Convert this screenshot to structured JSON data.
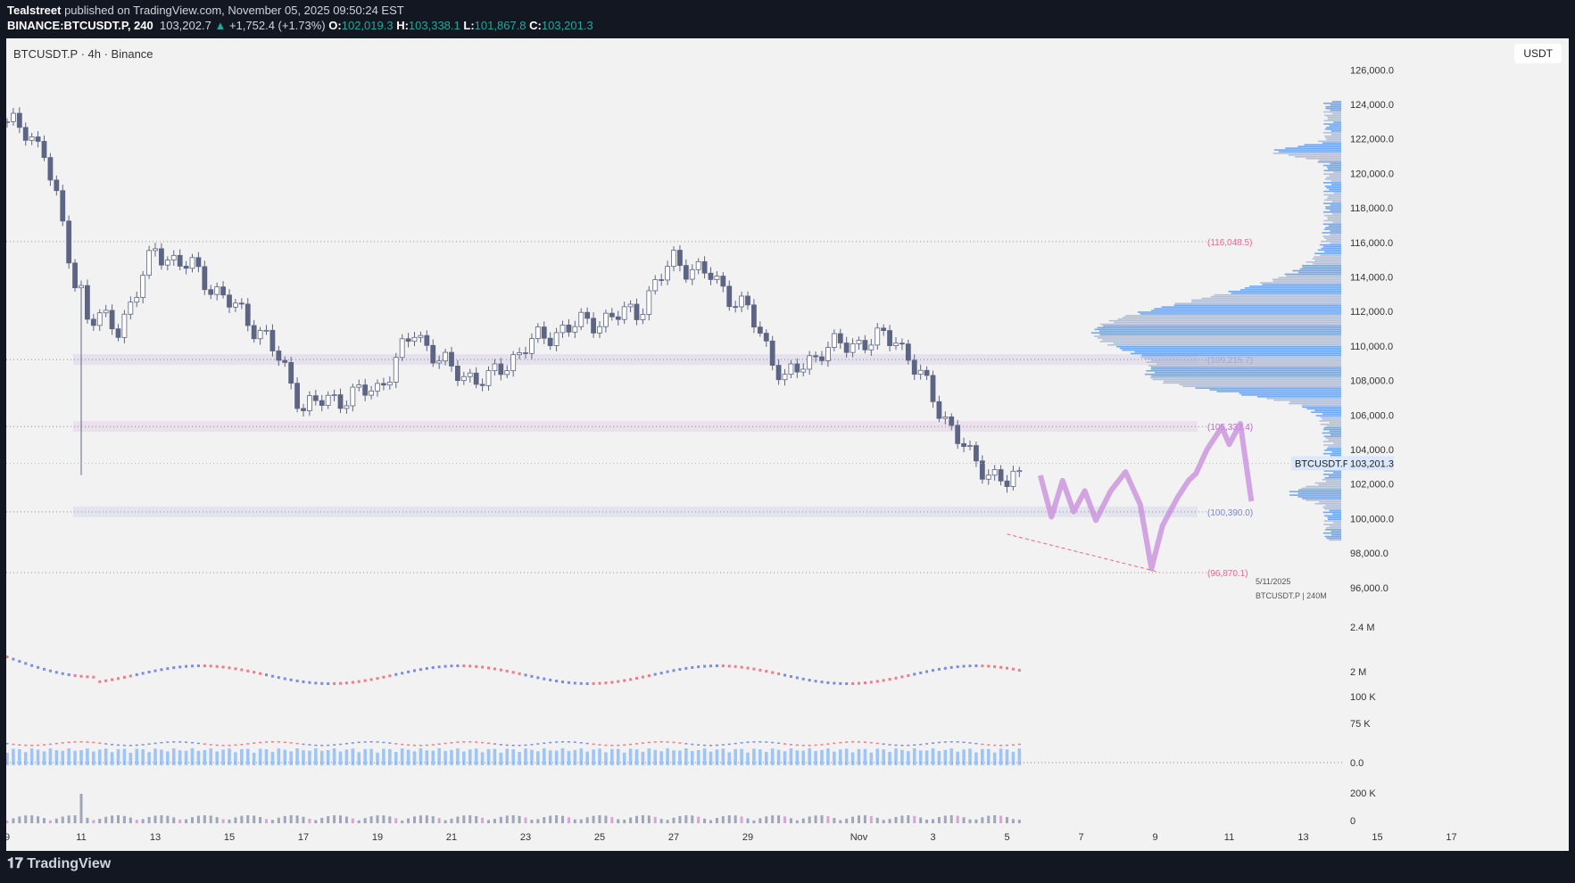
{
  "header": {
    "line1_author": "Tealstreet",
    "line1_rest": " published on TradingView.com, November 05, 2025 09:50:24 EST",
    "symbol": "BINANCE:BTCUSDT.P, 240",
    "last": "103,202.7",
    "change": "+1,752.4 (+1.73%)",
    "o_label": "O:",
    "o": "102,019.3",
    "h_label": "H:",
    "h": "103,338.1",
    "l_label": "L:",
    "l": "101,867.8",
    "c_label": "C:",
    "c": "103,201.3"
  },
  "chart_title": "BTCUSDT.P · 4h · Binance",
  "currency": "USDT",
  "footer": "TradingView",
  "chart_data": {
    "type": "candlestick",
    "symbol": "BTCUSDT.P",
    "interval": "4h",
    "ylim": [
      95000,
      127000
    ],
    "yticks": [
      "126,000.0",
      "124,000.0",
      "122,000.0",
      "120,000.0",
      "118,000.0",
      "116,000.0",
      "114,000.0",
      "112,000.0",
      "110,000.0",
      "108,000.0",
      "106,000.0",
      "104,000.0",
      "102,000.0",
      "100,000.0",
      "98,000.0",
      "96,000.0"
    ],
    "ytick_values": [
      126000,
      124000,
      122000,
      120000,
      118000,
      116000,
      114000,
      112000,
      110000,
      108000,
      106000,
      104000,
      102000,
      100000,
      98000,
      96000
    ],
    "xticks": [
      "9",
      "11",
      "13",
      "15",
      "17",
      "19",
      "21",
      "23",
      "25",
      "27",
      "29",
      "Nov",
      "3",
      "5",
      "7",
      "9",
      "11",
      "13",
      "15",
      "17"
    ],
    "xtick_days": [
      0,
      2,
      4,
      6,
      8,
      10,
      12,
      14,
      16,
      18,
      20,
      23,
      25,
      27,
      29,
      31,
      33,
      35,
      37,
      39
    ],
    "daily_closes": [
      123000,
      121500,
      112000,
      111000,
      115500,
      114500,
      112500,
      110500,
      106500,
      107000,
      107500,
      110800,
      108500,
      108000,
      110000,
      111000,
      111500,
      112000,
      115000,
      114000,
      112000,
      108000,
      109800,
      110200,
      110500,
      107000,
      103500,
      102000,
      103200
    ],
    "levels": [
      {
        "label": "(116,048.5)",
        "value": 116048.5,
        "color": "#f06292"
      },
      {
        "label": "(109,215.7)",
        "value": 109215.7,
        "color": "#9575cd"
      },
      {
        "label": "(105,333.4)",
        "value": 105333.4,
        "color": "#ba68c8"
      },
      {
        "label": "(100,390.0)",
        "value": 100390.0,
        "color": "#7986cb"
      },
      {
        "label": "(96,870.1)",
        "value": 96870.1,
        "color": "#f06292"
      }
    ],
    "last_price_label": "103,201.3",
    "last_price_value": 103201.3,
    "last_symbol_tag": "BTCUSDT.P",
    "profile_note_date": "5/11/2025",
    "profile_note": "BTCUSDT.P | 240M",
    "projection": [
      [
        27.9,
        102500
      ],
      [
        28.2,
        100100
      ],
      [
        28.5,
        102200
      ],
      [
        28.8,
        100400
      ],
      [
        29.1,
        101600
      ],
      [
        29.4,
        99900
      ],
      [
        29.8,
        101600
      ],
      [
        30.2,
        102700
      ],
      [
        30.6,
        100800
      ],
      [
        30.9,
        97100
      ],
      [
        31.2,
        99600
      ],
      [
        31.6,
        101200
      ],
      [
        31.9,
        102200
      ],
      [
        32.1,
        102600
      ],
      [
        32.4,
        104000
      ],
      [
        32.8,
        105300
      ],
      [
        33.0,
        104300
      ],
      [
        33.3,
        105500
      ],
      [
        33.6,
        101000
      ]
    ],
    "trendline": [
      [
        27,
        99100
      ],
      [
        31.1,
        96900
      ]
    ],
    "sub_axes": [
      "2.4 M",
      "2 M",
      "100 K",
      "75 K",
      "0.0",
      "200 K",
      "0"
    ]
  }
}
